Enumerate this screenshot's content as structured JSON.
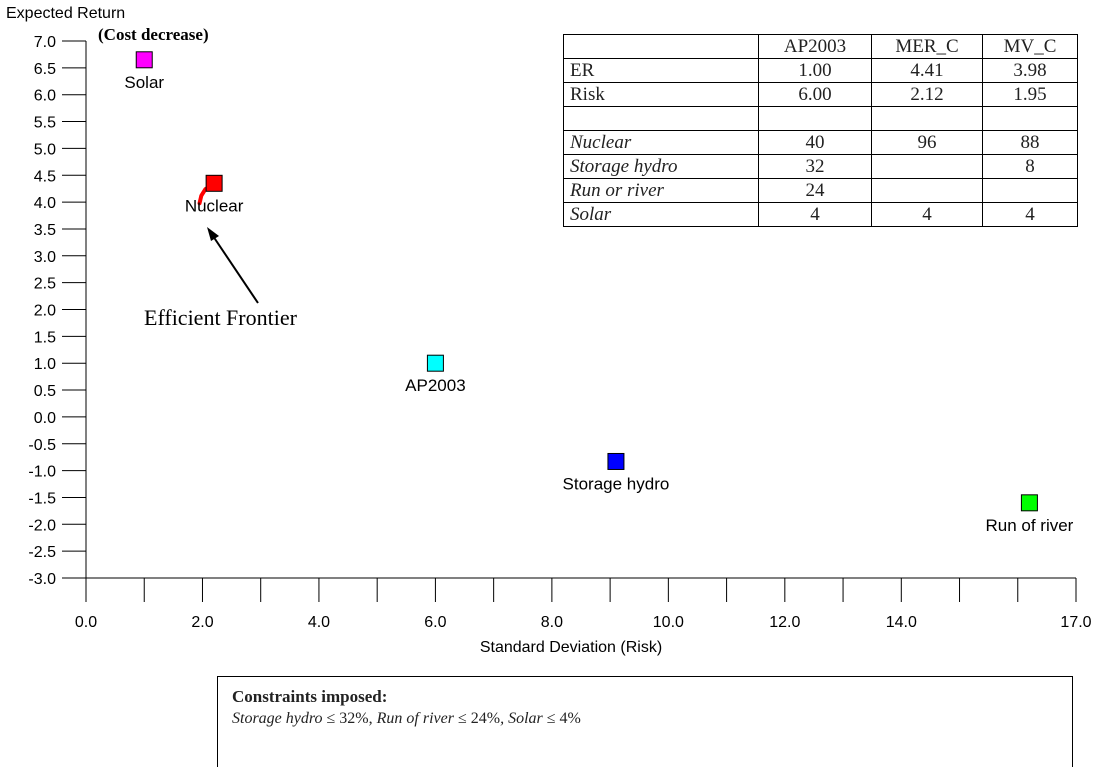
{
  "chart_data": {
    "type": "scatter",
    "ylabel": "Expected Return",
    "ylabel_note": "(Cost decrease)",
    "xlabel": "Standard Deviation (Risk)",
    "xlim": [
      0,
      17
    ],
    "ylim": [
      -3,
      7
    ],
    "x_ticks": [
      "0.0",
      "2.0",
      "4.0",
      "6.0",
      "8.0",
      "10.0",
      "12.0",
      "14.0",
      "17.0"
    ],
    "x_tick_values": [
      0,
      2,
      4,
      6,
      8,
      10,
      12,
      14,
      17
    ],
    "y_ticks": [
      "7.0",
      "6.5",
      "6.0",
      "5.5",
      "5.0",
      "4.5",
      "4.0",
      "3.5",
      "3.0",
      "2.5",
      "2.0",
      "1.5",
      "1.0",
      "0.5",
      "0.0",
      "-0.5",
      "-1.0",
      "-1.5",
      "-2.0",
      "-2.5",
      "-3.0"
    ],
    "y_tick_values": [
      7,
      6.5,
      6,
      5.5,
      5,
      4.5,
      4,
      3.5,
      3,
      2.5,
      2,
      1.5,
      1,
      0.5,
      0,
      -0.5,
      -1,
      -1.5,
      -2,
      -2.5,
      -3
    ],
    "points": [
      {
        "label": "Solar",
        "x": 1.0,
        "y": 6.65,
        "color": "#ff00ff"
      },
      {
        "label": "Nuclear",
        "x": 2.2,
        "y": 4.35,
        "color": "#ff0000"
      },
      {
        "label": "AP2003",
        "x": 6.0,
        "y": 1.0,
        "color": "#00ffff"
      },
      {
        "label": "Storage hydro",
        "x": 9.1,
        "y": -0.83,
        "color": "#0000ff"
      },
      {
        "label": "Run of river",
        "x": 16.2,
        "y": -1.6,
        "color": "#00ff00"
      }
    ],
    "frontier": {
      "label": "Efficient Frontier",
      "color": "#ff0000",
      "x": [
        1.95,
        1.98,
        2.05,
        2.15,
        2.2
      ],
      "y": [
        3.98,
        4.12,
        4.24,
        4.31,
        4.33
      ]
    },
    "grid": false
  },
  "table": {
    "headers": [
      "",
      "AP2003",
      "MER_C",
      "MV_C"
    ],
    "rows": [
      {
        "label": "ER",
        "italic": false,
        "values": [
          "1.00",
          "4.41",
          "3.98"
        ]
      },
      {
        "label": "Risk",
        "italic": false,
        "values": [
          "6.00",
          "2.12",
          "1.95"
        ]
      },
      {
        "label": "",
        "italic": false,
        "values": [
          "",
          "",
          ""
        ]
      },
      {
        "label": "Nuclear",
        "italic": true,
        "values": [
          "40",
          "96",
          "88"
        ]
      },
      {
        "label": "Storage hydro",
        "italic": true,
        "values": [
          "32",
          "",
          "8"
        ]
      },
      {
        "label": "Run or river",
        "italic": true,
        "values": [
          "24",
          "",
          ""
        ]
      },
      {
        "label": "Solar",
        "italic": true,
        "values": [
          "4",
          "4",
          "4"
        ]
      }
    ]
  },
  "constraints": {
    "title": "Constraints imposed:",
    "items": [
      {
        "name": "Storage hydro",
        "rule": " ≤ 32%, "
      },
      {
        "name": "Run of river",
        "rule": " ≤ 24%"
      },
      {
        "name": ", Solar",
        "rule": " ≤ 4%"
      }
    ]
  }
}
